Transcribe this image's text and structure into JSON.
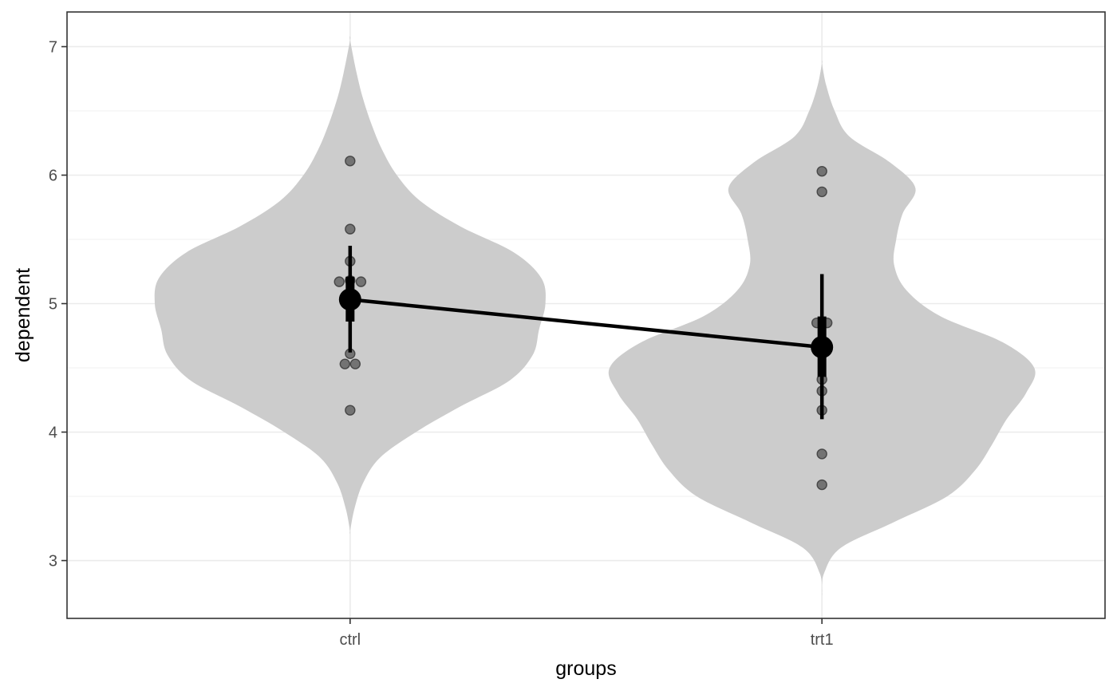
{
  "chart_data": {
    "type": "violin",
    "title": "",
    "xlabel": "groups",
    "ylabel": "dependent",
    "categories": [
      "ctrl",
      "trt1"
    ],
    "ylim": [
      2.55,
      7.27
    ],
    "yticks": [
      3,
      4,
      5,
      6,
      7
    ],
    "grid": true,
    "legend": "none",
    "colors": {
      "violin_fill": "#cccccc",
      "point_fill": "#555555",
      "summary": "#000000",
      "grid_major": "#ebebeb",
      "panel_border": "#333333"
    },
    "violins": [
      {
        "group": "ctrl",
        "profile": [
          {
            "y": 3.23,
            "w": 0.0
          },
          {
            "y": 3.4,
            "w": 0.02
          },
          {
            "y": 3.6,
            "w": 0.06
          },
          {
            "y": 3.8,
            "w": 0.14
          },
          {
            "y": 4.0,
            "w": 0.31
          },
          {
            "y": 4.2,
            "w": 0.52
          },
          {
            "y": 4.4,
            "w": 0.75
          },
          {
            "y": 4.6,
            "w": 0.86
          },
          {
            "y": 4.8,
            "w": 0.89
          },
          {
            "y": 5.0,
            "w": 0.92
          },
          {
            "y": 5.2,
            "w": 0.9
          },
          {
            "y": 5.4,
            "w": 0.77
          },
          {
            "y": 5.6,
            "w": 0.52
          },
          {
            "y": 5.8,
            "w": 0.33
          },
          {
            "y": 6.0,
            "w": 0.22
          },
          {
            "y": 6.2,
            "w": 0.15
          },
          {
            "y": 6.4,
            "w": 0.1
          },
          {
            "y": 6.6,
            "w": 0.06
          },
          {
            "y": 6.8,
            "w": 0.03
          },
          {
            "y": 7.05,
            "w": 0.0
          }
        ]
      },
      {
        "group": "trt1",
        "profile": [
          {
            "y": 2.75,
            "w": 0.0
          },
          {
            "y": 2.9,
            "w": 0.01
          },
          {
            "y": 3.1,
            "w": 0.09
          },
          {
            "y": 3.3,
            "w": 0.34
          },
          {
            "y": 3.5,
            "w": 0.59
          },
          {
            "y": 3.7,
            "w": 0.72
          },
          {
            "y": 3.9,
            "w": 0.8
          },
          {
            "y": 4.1,
            "w": 0.87
          },
          {
            "y": 4.3,
            "w": 0.96
          },
          {
            "y": 4.5,
            "w": 1.0
          },
          {
            "y": 4.7,
            "w": 0.85
          },
          {
            "y": 4.9,
            "w": 0.56
          },
          {
            "y": 5.1,
            "w": 0.4
          },
          {
            "y": 5.3,
            "w": 0.34
          },
          {
            "y": 5.5,
            "w": 0.35
          },
          {
            "y": 5.7,
            "w": 0.38
          },
          {
            "y": 5.9,
            "w": 0.44
          },
          {
            "y": 6.1,
            "w": 0.32
          },
          {
            "y": 6.3,
            "w": 0.13
          },
          {
            "y": 6.5,
            "w": 0.06
          },
          {
            "y": 6.7,
            "w": 0.02
          },
          {
            "y": 6.87,
            "w": 0.0
          }
        ]
      }
    ],
    "points": [
      {
        "group": "ctrl",
        "y": 6.11,
        "dx": 0.0
      },
      {
        "group": "ctrl",
        "y": 5.58,
        "dx": 0.0
      },
      {
        "group": "ctrl",
        "y": 5.33,
        "dx": 0.0
      },
      {
        "group": "ctrl",
        "y": 5.17,
        "dx": -0.023
      },
      {
        "group": "ctrl",
        "y": 5.17,
        "dx": 0.023
      },
      {
        "group": "ctrl",
        "y": 5.18,
        "dx": 0.0
      },
      {
        "group": "ctrl",
        "y": 4.61,
        "dx": 0.0
      },
      {
        "group": "ctrl",
        "y": 4.53,
        "dx": -0.011
      },
      {
        "group": "ctrl",
        "y": 4.53,
        "dx": 0.011
      },
      {
        "group": "ctrl",
        "y": 4.17,
        "dx": 0.0
      },
      {
        "group": "trt1",
        "y": 6.03,
        "dx": 0.0
      },
      {
        "group": "trt1",
        "y": 5.87,
        "dx": 0.0
      },
      {
        "group": "trt1",
        "y": 4.85,
        "dx": -0.011
      },
      {
        "group": "trt1",
        "y": 4.85,
        "dx": 0.011
      },
      {
        "group": "trt1",
        "y": 4.41,
        "dx": 0.0
      },
      {
        "group": "trt1",
        "y": 4.32,
        "dx": 0.0
      },
      {
        "group": "trt1",
        "y": 4.17,
        "dx": 0.0
      },
      {
        "group": "trt1",
        "y": 3.83,
        "dx": 0.0
      },
      {
        "group": "trt1",
        "y": 3.59,
        "dx": 0.0
      }
    ],
    "summary": [
      {
        "group": "ctrl",
        "mean": 5.032,
        "se_low": 4.86,
        "se_high": 5.21,
        "ci_low": 4.62,
        "ci_high": 5.45
      },
      {
        "group": "trt1",
        "mean": 4.661,
        "se_low": 4.43,
        "se_high": 4.9,
        "ci_low": 4.1,
        "ci_high": 5.23
      }
    ]
  }
}
